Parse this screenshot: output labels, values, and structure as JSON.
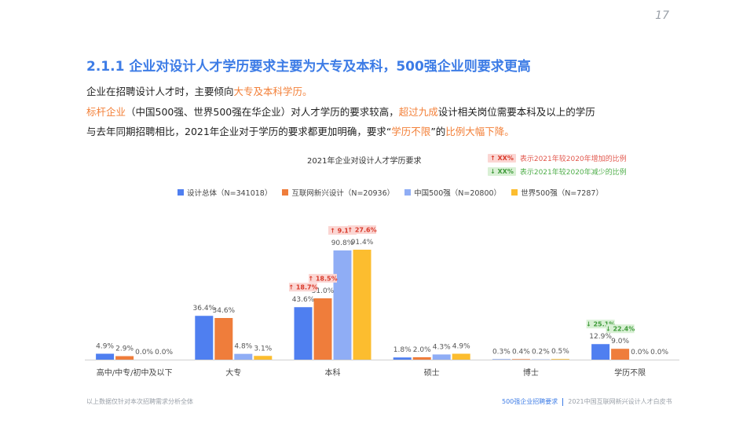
{
  "page_number": "17",
  "title": "2.1.1 企业对设计人才学历要求主要为大专及本科，500强企业则要求更高",
  "intro": {
    "line1": {
      "a": "企业在招聘设计人才时，主要倾向",
      "b": "大专及本科学历。"
    },
    "line2": {
      "a": "标杆企业",
      "b": "（中国500强、世界500强在华企业）对人才学历的要求较高，",
      "c": "超过九成",
      "d": "设计相关岗位需要本科及以上的学历"
    },
    "line3": {
      "a": "与去年同期招聘相比，2021年企业对于学历的要求都更加明确，要求“",
      "b": "学历不限",
      "c": "”的",
      "d": "比例大幅下降。"
    }
  },
  "notes": {
    "up_badge": "↑ XX%",
    "up_text": "表示2021年较2020年增加的比例",
    "down_badge": "↓ XX%",
    "down_text": "表示2021年较2020年减少的比例"
  },
  "colors": {
    "series": [
      "#4f7ff0",
      "#ef7d3b",
      "#8fadf5",
      "#fcbd2f"
    ],
    "up_bg": "#fbd6d3",
    "up_fg": "#d93a2b",
    "down_bg": "#d9f0d5",
    "down_fg": "#3f9b3a"
  },
  "chart_data": {
    "type": "bar",
    "title": "2021年企业对设计人才学历要求",
    "categories": [
      "高中/中专/初中及以下",
      "大专",
      "本科",
      "硕士",
      "博士",
      "学历不限"
    ],
    "ylim": [
      0,
      100
    ],
    "grid": false,
    "legend_position": "top",
    "series": [
      {
        "name": "设计总体（N=341018）",
        "values": [
          4.9,
          36.4,
          43.6,
          1.8,
          0.3,
          12.9
        ],
        "labels": [
          "4.9%",
          "36.4%",
          "43.6%",
          "1.8%",
          "0.3%",
          "12.9%"
        ]
      },
      {
        "name": "互联网新兴设计（N=20936）",
        "values": [
          2.9,
          34.6,
          51.0,
          2.0,
          0.4,
          9.0
        ],
        "labels": [
          "2.9%",
          "34.6%",
          "51.0%",
          "2.0%",
          "0.4%",
          "9.0%"
        ]
      },
      {
        "name": "中国500强（N=20800）",
        "values": [
          0.0,
          4.8,
          90.8,
          4.3,
          0.2,
          0.0
        ],
        "labels": [
          "0.0%",
          "4.8%",
          "90.8%",
          "4.3%",
          "0.2%",
          "0.0%"
        ]
      },
      {
        "name": "世界500强（N=7287）",
        "values": [
          0.0,
          3.1,
          91.4,
          4.9,
          0.5,
          0.0
        ],
        "labels": [
          "0.0%",
          "3.1%",
          "91.4%",
          "4.9%",
          "0.5%",
          "0.0%"
        ]
      }
    ],
    "change_annotations": [
      {
        "category": "本科",
        "series": 0,
        "direction": "up",
        "text": "↑ 18.7%"
      },
      {
        "category": "本科",
        "series": 1,
        "direction": "up",
        "text": "↑ 18.5%"
      },
      {
        "category": "本科",
        "series": 2,
        "direction": "up",
        "text": "↑ 9.1%"
      },
      {
        "category": "本科",
        "series": 3,
        "direction": "up",
        "text": "↑ 27.6%"
      },
      {
        "category": "学历不限",
        "series": 0,
        "direction": "down",
        "text": "↓ 25.1%"
      },
      {
        "category": "学历不限",
        "series": 1,
        "direction": "down",
        "text": "↓ 22.4%"
      }
    ]
  },
  "footer": {
    "left": "以上数据仅针对本次招聘需求分析全体",
    "section": "500强企业招聘要求",
    "doc": "2021中国互联网新兴设计人才白皮书"
  }
}
